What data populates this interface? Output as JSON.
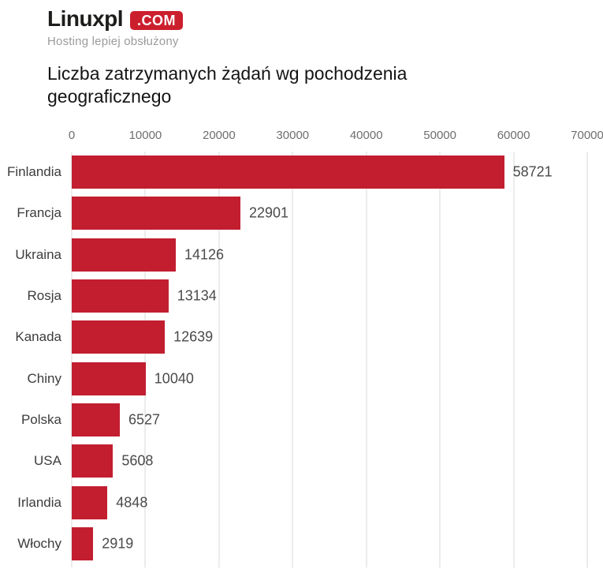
{
  "header": {
    "logo_name": "Linuxpl",
    "logo_tld": ".COM",
    "tagline": "Hosting lepiej obsłużony",
    "badge_color": "#cc1f2d"
  },
  "title": {
    "line1": "Liczba zatrzymanych żądań wg pochodzenia",
    "line2": "geograficznego"
  },
  "chart_data": {
    "type": "bar",
    "orientation": "horizontal",
    "title": "Liczba zatrzymanych żądań wg pochodzenia geograficznego",
    "categories": [
      "Finlandia",
      "Francja",
      "Ukraina",
      "Rosja",
      "Kanada",
      "Chiny",
      "Polska",
      "USA",
      "Irlandia",
      "Włochy"
    ],
    "values": [
      58721,
      22901,
      14126,
      13134,
      12639,
      10040,
      6527,
      5608,
      4848,
      2919
    ],
    "xlim": [
      0,
      70000
    ],
    "x_ticks": [
      0,
      10000,
      20000,
      30000,
      40000,
      50000,
      60000,
      70000
    ],
    "xlabel": "",
    "ylabel": "",
    "bar_color": "#c21e30",
    "grid": true,
    "grid_color": "#d9d9d9",
    "value_labels": true,
    "legend": false
  }
}
